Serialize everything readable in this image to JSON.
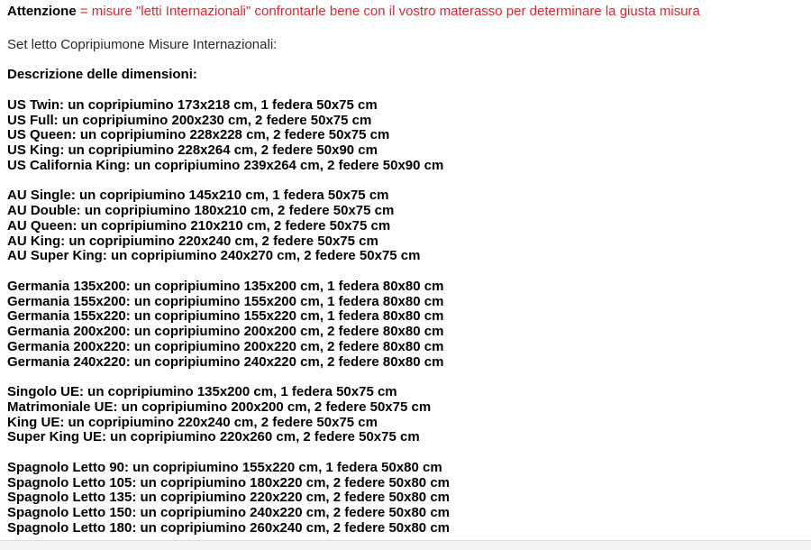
{
  "attention": {
    "label": "Attenzione",
    "message": " = misure \"letti Internazionali\" confrontarle bene con il vostro materasso per determinare la giusta misura"
  },
  "intro": "Set letto Copripiumone Misure Internazionali:",
  "description_heading": "Descrizione delle dimensioni:",
  "colors": {
    "attention_red": "#e2242e",
    "bold_text": "#000000",
    "footer_strip": "#f2f2f3"
  },
  "sections": [
    {
      "name": "us",
      "lines": [
        "US Twin: un copripiumino 173x218 cm, 1 federa 50x75 cm",
        "US Full: un copripiumino 200x230 cm, 2 federe 50x75 cm",
        "US Queen: un copripiumino 228x228 cm, 2 federe 50x75 cm",
        "US King: un copripiumino 228x264 cm, 2 federe 50x90 cm",
        "US California King: un copripiumino 239x264 cm, 2 federe 50x90 cm"
      ]
    },
    {
      "name": "au",
      "lines": [
        "AU Single: un copripiumino 145x210 cm, 1 federa 50x75 cm",
        "AU Double: un copripiumino 180x210 cm, 2 federe 50x75 cm",
        "AU Queen: un copripiumino 210x210 cm, 2 federe 50x75 cm",
        "AU King: un copripiumino 220x240 cm, 2 federe 50x75 cm",
        "AU Super King: un copripiumino 240x270 cm, 2 federe 50x75 cm"
      ]
    },
    {
      "name": "germania",
      "lines": [
        "Germania 135x200: un copripiumino 135x200 cm, 1 federa 80x80 cm",
        "Germania 155x200: un copripiumino 155x200 cm, 1 federa 80x80 cm",
        "Germania 155x220: un copripiumino 155x220 cm, 1 federa 80x80 cm",
        "Germania 200x200: un copripiumino 200x200 cm, 2 federe 80x80 cm",
        "Germania 200x220: un copripiumino 200x220 cm, 2 federe 80x80 cm",
        "Germania 240x220: un copripiumino 240x220 cm, 2 federe 80x80 cm"
      ]
    },
    {
      "name": "ue",
      "lines": [
        "Singolo UE: un copripiumino 135x200 cm, 1 federa 50x75 cm",
        "Matrimoniale UE: un copripiumino 200x200 cm, 2 federe 50x75 cm",
        "King UE: un copripiumino 220x240 cm, 2 federe 50x75 cm",
        "Super King UE: un copripiumino 220x260 cm, 2 federe 50x75 cm"
      ]
    },
    {
      "name": "spagnolo",
      "lines": [
        "Spagnolo Letto 90: un copripiumino 155x220 cm, 1 federa 50x80 cm",
        "Spagnolo Letto 105: un copripiumino 180x220 cm, 2 federe 50x80 cm",
        "Spagnolo Letto 135: un copripiumino 220x220 cm, 2 federe 50x80 cm",
        "Spagnolo Letto 150: un copripiumino 240x220 cm, 2 federe 50x80 cm",
        "Spagnolo Letto 180: un copripiumino 260x240 cm, 2 federe 50x80 cm"
      ]
    }
  ]
}
